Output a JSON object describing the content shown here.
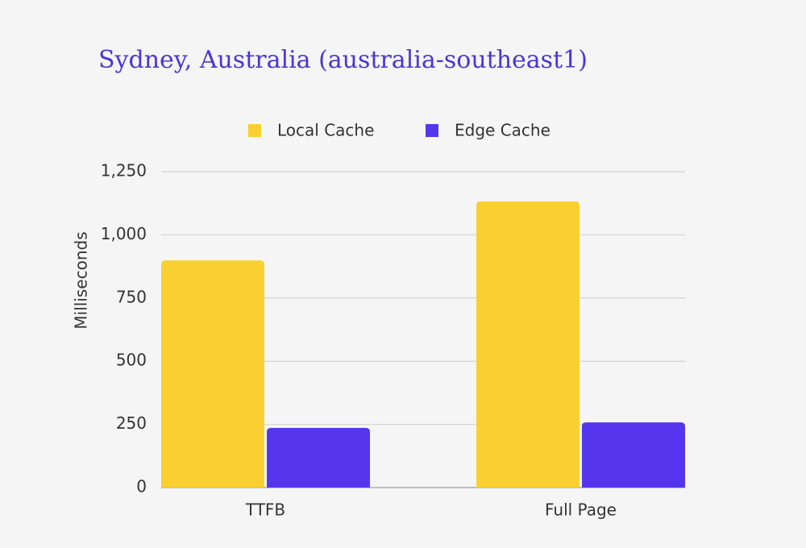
{
  "chart_data": {
    "type": "bar",
    "title": "Sydney, Australia (australia-southeast1)",
    "categories": [
      "TTFB",
      "Full Page"
    ],
    "series": [
      {
        "name": "Local Cache",
        "color": "#f9d02f",
        "values": [
          899,
          1132
        ]
      },
      {
        "name": "Edge Cache",
        "color": "#5536ee",
        "values": [
          236,
          258
        ]
      }
    ],
    "y_label": "Milliseconds",
    "ylim": [
      0,
      1250
    ],
    "yticks": [
      0,
      250,
      500,
      750,
      {
        "value": 1000,
        "label": "1,000"
      },
      {
        "value": 1250,
        "label": "1,250"
      }
    ],
    "grid": true,
    "legend": "top"
  }
}
